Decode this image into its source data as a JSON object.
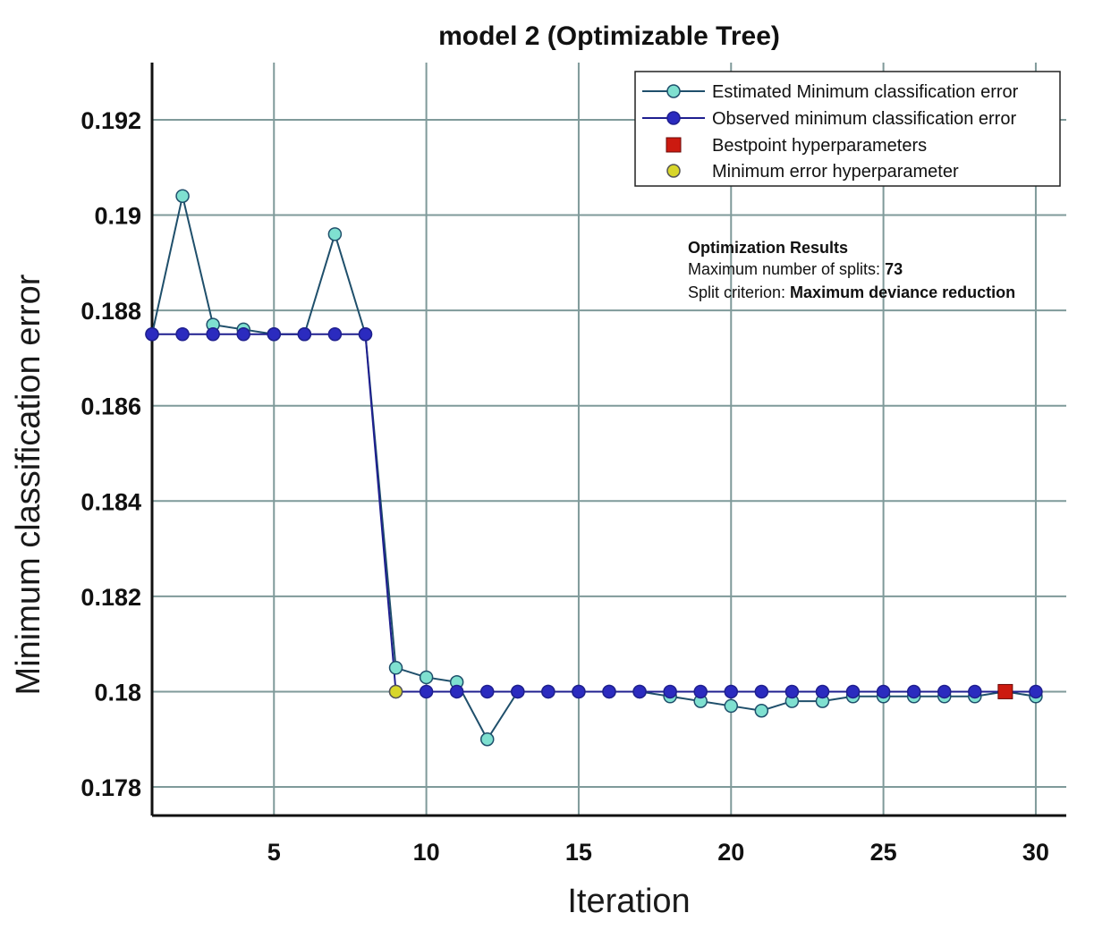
{
  "chart_data": {
    "type": "line",
    "title": "model 2 (Optimizable Tree)",
    "xlabel": "Iteration",
    "ylabel": "Minimum classification error",
    "xlim": [
      1,
      31
    ],
    "ylim": [
      0.1774,
      0.1932
    ],
    "xticks": [
      5,
      10,
      15,
      20,
      25,
      30
    ],
    "yticks": [
      0.178,
      0.18,
      0.182,
      0.184,
      0.186,
      0.188,
      0.19,
      0.192
    ],
    "ytick_labels": [
      "0.178",
      "0.18",
      "0.182",
      "0.184",
      "0.186",
      "0.188",
      "0.19",
      "0.192"
    ],
    "grid": true,
    "legend_position": "top-right",
    "x": [
      1,
      2,
      3,
      4,
      5,
      6,
      7,
      8,
      9,
      10,
      11,
      12,
      13,
      14,
      15,
      16,
      17,
      18,
      19,
      20,
      21,
      22,
      23,
      24,
      25,
      26,
      27,
      28,
      29,
      30
    ],
    "series": [
      {
        "name": "Estimated Minimum classification error",
        "marker": "circle",
        "line_color": "#1f4f6b",
        "marker_color": "#7fe0d0",
        "values": [
          0.1875,
          0.1904,
          0.1877,
          0.1876,
          0.1875,
          0.1875,
          0.1896,
          0.1875,
          0.1805,
          0.1803,
          0.1802,
          0.179,
          0.18,
          0.18,
          0.18,
          0.18,
          0.18,
          0.1799,
          0.1798,
          0.1797,
          0.1796,
          0.1798,
          0.1798,
          0.1799,
          0.1799,
          0.1799,
          0.1799,
          0.1799,
          0.18,
          0.1799
        ]
      },
      {
        "name": "Observed minimum classification error",
        "marker": "circle",
        "line_color": "#1f1f8f",
        "marker_color": "#2b2bbf",
        "values": [
          0.1875,
          0.1875,
          0.1875,
          0.1875,
          0.1875,
          0.1875,
          0.1875,
          0.1875,
          0.18,
          0.18,
          0.18,
          0.18,
          0.18,
          0.18,
          0.18,
          0.18,
          0.18,
          0.18,
          0.18,
          0.18,
          0.18,
          0.18,
          0.18,
          0.18,
          0.18,
          0.18,
          0.18,
          0.18,
          0.18,
          0.18
        ]
      }
    ],
    "points": [
      {
        "name": "Bestpoint hyperparameters",
        "marker": "square",
        "color": "#cc1a10",
        "x": 29,
        "y": 0.18
      },
      {
        "name": "Minimum error hyperparameter",
        "marker": "circle",
        "color": "#d8d62a",
        "x": 9,
        "y": 0.18
      }
    ],
    "legend": [
      "Estimated Minimum classification error",
      "Observed minimum classification error",
      "Bestpoint hyperparameters",
      "Minimum error hyperparameter"
    ],
    "annotation": {
      "heading": "Optimization Results",
      "line1_label": "Maximum number of splits: ",
      "line1_value": "73",
      "line2_label": "Split criterion: ",
      "line2_value": "Maximum deviance reduction"
    }
  }
}
